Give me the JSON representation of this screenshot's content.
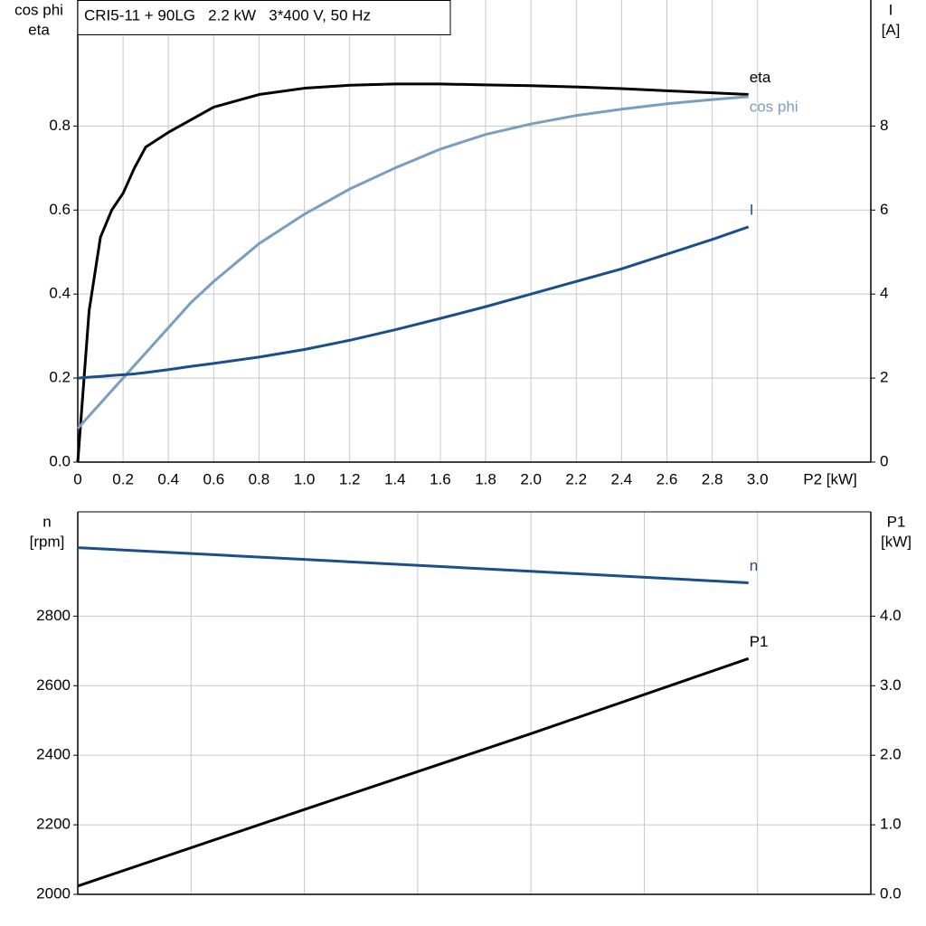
{
  "chart_data": [
    {
      "type": "line",
      "title": "CRI5-11 + 90LG   2.2 kW   3*400 V, 50 Hz",
      "ylabel": [
        "cos phi",
        "eta"
      ],
      "y2label": [
        "I",
        "[A]"
      ],
      "xlabel": "P2 [kW]",
      "x": [
        0,
        0.05,
        0.1,
        0.15,
        0.2,
        0.25,
        0.3,
        0.4,
        0.5,
        0.6,
        0.8,
        1.0,
        1.2,
        1.4,
        1.6,
        1.8,
        2.0,
        2.2,
        2.4,
        2.6,
        2.8,
        2.96
      ],
      "series": [
        {
          "name": "eta",
          "color": "#000000",
          "axis": "y",
          "values": [
            0,
            0.36,
            0.535,
            0.6,
            0.64,
            0.7,
            0.75,
            0.785,
            0.815,
            0.845,
            0.875,
            0.89,
            0.897,
            0.9,
            0.9,
            0.898,
            0.896,
            0.893,
            0.889,
            0.884,
            0.879,
            0.875
          ]
        },
        {
          "name": "cos phi",
          "color": "#7a9ec0",
          "axis": "y",
          "values": [
            0.08,
            0.11,
            0.14,
            0.17,
            0.2,
            0.23,
            0.26,
            0.32,
            0.38,
            0.43,
            0.52,
            0.59,
            0.65,
            0.7,
            0.745,
            0.78,
            0.805,
            0.825,
            0.84,
            0.853,
            0.863,
            0.87
          ]
        },
        {
          "name": "I",
          "color": "#1b4f8a",
          "axis": "y2",
          "values": [
            2.0,
            2.02,
            2.04,
            2.06,
            2.08,
            2.1,
            2.13,
            2.2,
            2.28,
            2.35,
            2.5,
            2.68,
            2.9,
            3.15,
            3.42,
            3.7,
            4.0,
            4.3,
            4.6,
            4.95,
            5.3,
            5.6
          ]
        }
      ],
      "xlim": [
        0,
        3.5
      ],
      "xticks": [
        0,
        0.2,
        0.4,
        0.6,
        0.8,
        {
          "value": 1,
          "label": "1.0"
        },
        1.2,
        1.4,
        1.6,
        1.8,
        {
          "value": 2,
          "label": "2.0"
        },
        2.2,
        2.4,
        2.6,
        2.8,
        {
          "value": 3,
          "label": "3.0"
        }
      ],
      "ylim": [
        0,
        1.1
      ],
      "yticks": [
        {
          "value": 0,
          "label": "0.0"
        },
        0.2,
        0.4,
        0.6,
        0.8
      ],
      "y2lim": [
        0,
        11
      ],
      "y2ticks": [
        0,
        2,
        4,
        6,
        8
      ],
      "grid": true
    },
    {
      "type": "line",
      "ylabel": [
        "n",
        "[rpm]"
      ],
      "y2label": [
        "P1",
        "[kW]"
      ],
      "x": [
        0,
        1,
        2,
        2.96
      ],
      "series": [
        {
          "name": "n",
          "color": "#1b4f8a",
          "axis": "y",
          "values": [
            2997,
            2963,
            2929,
            2896
          ]
        },
        {
          "name": "P1",
          "color": "#000000",
          "axis": "y2",
          "values": [
            0.12,
            1.22,
            2.31,
            3.39
          ]
        }
      ],
      "xlim": [
        0,
        3.5
      ],
      "xgrid": [
        0.5,
        1,
        1.5,
        2,
        2.5,
        3,
        3.5
      ],
      "ylim": [
        2000,
        3100
      ],
      "yticks": [
        2000,
        2200,
        2400,
        2600,
        2800
      ],
      "y2lim": [
        0,
        5.5
      ],
      "y2ticks": [
        {
          "value": 0,
          "label": "0.0"
        },
        {
          "value": 1,
          "label": "1.0"
        },
        {
          "value": 2,
          "label": "2.0"
        },
        {
          "value": 3,
          "label": "3.0"
        },
        {
          "value": 4,
          "label": "4.0"
        }
      ],
      "grid": true
    }
  ]
}
